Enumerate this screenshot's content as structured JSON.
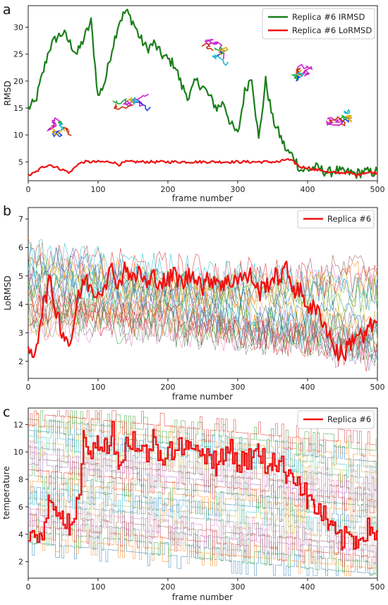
{
  "colors": {
    "irmsd": "#1a7f1a",
    "lormsd": "#ee1111",
    "replica_highlight": "#ee1111",
    "protein_magenta": "#cc22cc"
  },
  "panel_letters": [
    "a",
    "b",
    "c"
  ],
  "chart_data": [
    {
      "type": "line",
      "panel": "a",
      "xlabel": "frame number",
      "ylabel": "RMSD",
      "xlim": [
        0,
        500
      ],
      "ylim": [
        1.5,
        34
      ],
      "xticks": [
        0,
        100,
        200,
        300,
        400,
        500
      ],
      "yticks": [
        5,
        10,
        15,
        20,
        25,
        30
      ],
      "legend_position": "top-right",
      "insets": [
        "protein-structure-overlay",
        "protein-structure-overlay",
        "protein-structure-overlay",
        "protein-structure-overlay",
        "protein-structure-overlay"
      ],
      "series": [
        {
          "name": "Replica #6 IRMSD",
          "color": "#1a7f1a",
          "x": [
            0,
            10,
            20,
            30,
            40,
            50,
            60,
            70,
            80,
            90,
            100,
            110,
            120,
            130,
            140,
            150,
            160,
            170,
            180,
            190,
            200,
            210,
            220,
            230,
            240,
            250,
            260,
            270,
            280,
            290,
            300,
            310,
            320,
            330,
            340,
            350,
            360,
            370,
            380,
            390,
            400,
            410,
            420,
            430,
            440,
            450,
            460,
            470,
            480,
            490,
            500
          ],
          "values": [
            15,
            16,
            21,
            26,
            28,
            29,
            27,
            25,
            28,
            31,
            17,
            20,
            26,
            31,
            33,
            31,
            28,
            26,
            27,
            25,
            24,
            23,
            19,
            17,
            20,
            19,
            17,
            15,
            16,
            12,
            10,
            18,
            21,
            9,
            20,
            13,
            10,
            7,
            6,
            3.5,
            3.5,
            4,
            3.5,
            3,
            3.5,
            3,
            3,
            2.8,
            3.2,
            3,
            3.2
          ]
        },
        {
          "name": "Replica #6 LoRMSD",
          "color": "#ee1111",
          "x": [
            0,
            10,
            20,
            30,
            40,
            50,
            60,
            70,
            80,
            90,
            100,
            110,
            120,
            130,
            140,
            150,
            160,
            170,
            180,
            190,
            200,
            210,
            220,
            230,
            240,
            250,
            260,
            270,
            280,
            290,
            300,
            310,
            320,
            330,
            340,
            350,
            360,
            370,
            380,
            390,
            400,
            410,
            420,
            430,
            440,
            450,
            460,
            470,
            480,
            490,
            500
          ],
          "values": [
            2.5,
            3,
            4,
            4.5,
            4,
            3.5,
            3,
            4.5,
            5,
            5,
            5,
            5,
            5,
            4.5,
            5,
            5,
            5,
            5,
            5,
            5,
            5,
            5,
            5,
            5,
            5,
            5,
            5,
            5,
            5,
            5,
            5,
            5,
            5,
            5,
            5,
            5,
            5,
            5.5,
            5,
            4,
            4,
            3.5,
            3.5,
            3,
            3,
            3,
            3,
            2.5,
            3,
            3,
            3
          ]
        }
      ]
    },
    {
      "type": "line",
      "panel": "b",
      "xlabel": "frame number",
      "ylabel": "LoRMSD",
      "xlim": [
        0,
        500
      ],
      "ylim": [
        1.4,
        7.4
      ],
      "xticks": [
        0,
        100,
        200,
        300,
        400,
        500
      ],
      "yticks": [
        2,
        3,
        4,
        5,
        6,
        7
      ],
      "legend_position": "top-right",
      "background_replicas": 24,
      "series": [
        {
          "name": "Replica #6",
          "color": "#ee1111",
          "x": [
            0,
            10,
            20,
            30,
            40,
            50,
            60,
            70,
            80,
            90,
            100,
            110,
            120,
            130,
            140,
            150,
            160,
            170,
            180,
            190,
            200,
            210,
            220,
            230,
            240,
            250,
            260,
            270,
            280,
            290,
            300,
            310,
            320,
            330,
            340,
            350,
            360,
            370,
            380,
            390,
            400,
            410,
            420,
            430,
            440,
            450,
            460,
            470,
            480,
            490,
            500
          ],
          "values": [
            2.2,
            2.4,
            3.8,
            4.8,
            3.8,
            3.0,
            2.6,
            4.0,
            4.9,
            4.6,
            4.4,
            4.8,
            5.2,
            4.7,
            5.4,
            4.8,
            5.2,
            4.6,
            5.0,
            4.8,
            4.8,
            5.1,
            4.7,
            5.0,
            5.1,
            4.6,
            4.9,
            4.9,
            4.7,
            4.8,
            5.0,
            4.9,
            5.0,
            4.4,
            4.7,
            4.9,
            5.0,
            5.2,
            4.6,
            4.4,
            4.0,
            3.8,
            3.6,
            3.0,
            2.4,
            2.2,
            2.6,
            3.0,
            2.8,
            3.2,
            3.4
          ]
        }
      ]
    },
    {
      "type": "line",
      "panel": "c",
      "xlabel": "frame number",
      "ylabel": "temperature",
      "xlim": [
        0,
        500
      ],
      "ylim": [
        0.8,
        13.2
      ],
      "xticks": [
        0,
        100,
        200,
        300,
        400,
        500
      ],
      "yticks": [
        2,
        4,
        6,
        8,
        10,
        12
      ],
      "legend_position": "top-right",
      "background_replicas": 24,
      "series": [
        {
          "name": "Replica #6",
          "color": "#ee1111",
          "x": [
            0,
            10,
            20,
            30,
            40,
            50,
            60,
            70,
            80,
            90,
            100,
            110,
            120,
            130,
            140,
            150,
            160,
            170,
            180,
            190,
            200,
            210,
            220,
            230,
            240,
            250,
            260,
            270,
            280,
            290,
            300,
            310,
            320,
            330,
            340,
            350,
            360,
            370,
            380,
            390,
            400,
            410,
            420,
            430,
            440,
            450,
            460,
            470,
            480,
            490,
            500
          ],
          "values": [
            3.5,
            3.5,
            4.0,
            7.0,
            6.0,
            5.5,
            4.0,
            6.0,
            11.5,
            9.5,
            11.0,
            10.5,
            11.5,
            9.0,
            10.5,
            11.0,
            10.0,
            10.0,
            11.0,
            9.5,
            10.5,
            10.0,
            10.5,
            10.0,
            11.0,
            9.5,
            10.0,
            9.0,
            9.5,
            10.5,
            9.0,
            9.5,
            9.5,
            10.0,
            9.0,
            9.5,
            9.0,
            8.5,
            8.5,
            7.5,
            6.5,
            6.0,
            5.5,
            4.5,
            4.0,
            3.5,
            4.0,
            3.5,
            4.3,
            4.3,
            4.3
          ]
        }
      ]
    }
  ]
}
